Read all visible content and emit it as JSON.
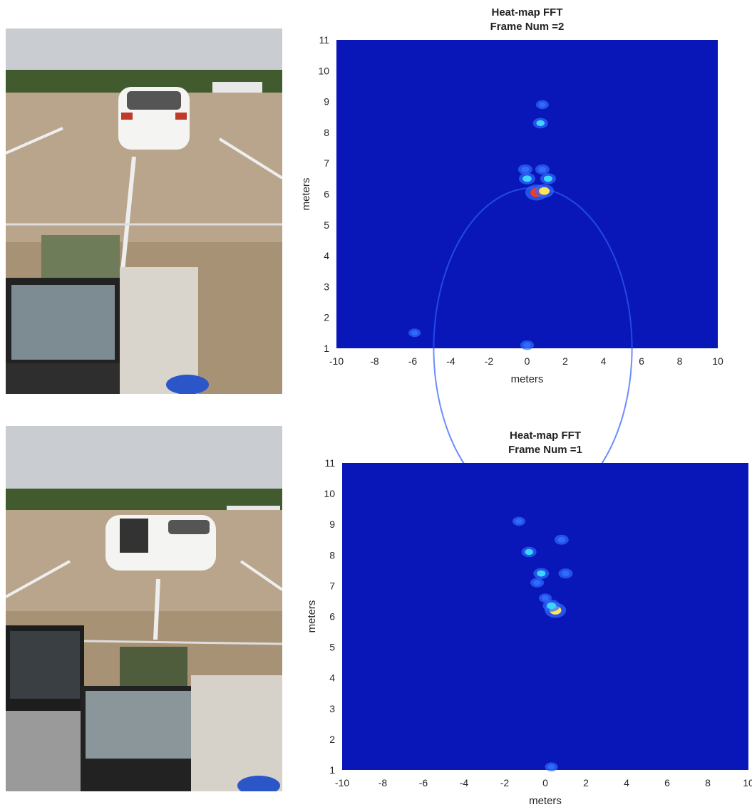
{
  "colors": {
    "heatmap_background": "#0a17b8",
    "heatmap_hot": "#ff3a10",
    "heatmap_warm": "#ffe45a",
    "heatmap_mid": "#3ad6ff",
    "sky": "#c9ccd0",
    "tree_line": "#3f5a2c",
    "asphalt": "#b8a389",
    "car": "#f4f4f2"
  },
  "photos": [
    {
      "name": "parking-lot-photo-car-closed",
      "description_icon": "photo-icon"
    },
    {
      "name": "parking-lot-photo-car-doors-open",
      "description_icon": "photo-icon"
    }
  ],
  "chart_data": [
    {
      "type": "heatmap",
      "title": "Heat-map FFT",
      "subtitle": "Frame Num =2",
      "xlabel": "meters",
      "ylabel": "meters",
      "xlim": [
        -10,
        10
      ],
      "ylim": [
        1,
        11
      ],
      "xticks": [
        -10,
        -8,
        -6,
        -4,
        -2,
        0,
        2,
        4,
        6,
        8,
        10
      ],
      "yticks": [
        1,
        2,
        3,
        4,
        5,
        6,
        7,
        8,
        9,
        10,
        11
      ],
      "hotspots": [
        {
          "x": 0.5,
          "y": 6.05,
          "intensity": 1.0
        },
        {
          "x": 0.9,
          "y": 6.1,
          "intensity": 0.75
        },
        {
          "x": 0.0,
          "y": 6.5,
          "intensity": 0.55
        },
        {
          "x": 1.1,
          "y": 6.5,
          "intensity": 0.5
        },
        {
          "x": -0.1,
          "y": 6.8,
          "intensity": 0.4
        },
        {
          "x": 0.8,
          "y": 6.8,
          "intensity": 0.4
        },
        {
          "x": 0.7,
          "y": 8.3,
          "intensity": 0.45
        },
        {
          "x": 0.8,
          "y": 8.9,
          "intensity": 0.3
        },
        {
          "x": 0.0,
          "y": 1.1,
          "intensity": 0.35
        },
        {
          "x": -5.9,
          "y": 1.5,
          "intensity": 0.25
        }
      ],
      "arc": {
        "center_x": 0.3,
        "center_y": 1.0,
        "radius": 5.2
      }
    },
    {
      "type": "heatmap",
      "title": "Heat-map FFT",
      "subtitle": "Frame Num =1",
      "xlabel": "meters",
      "ylabel": "meters",
      "xlim": [
        -10,
        10
      ],
      "ylim": [
        1,
        11
      ],
      "xticks": [
        -10,
        -8,
        -6,
        -4,
        -2,
        0,
        2,
        4,
        6,
        8,
        10
      ],
      "yticks": [
        1,
        2,
        3,
        4,
        5,
        6,
        7,
        8,
        9,
        10,
        11
      ],
      "hotspots": [
        {
          "x": 0.5,
          "y": 6.2,
          "intensity": 0.9
        },
        {
          "x": 0.3,
          "y": 6.35,
          "intensity": 0.6
        },
        {
          "x": -0.2,
          "y": 7.4,
          "intensity": 0.5
        },
        {
          "x": 1.0,
          "y": 7.4,
          "intensity": 0.4
        },
        {
          "x": -0.4,
          "y": 7.1,
          "intensity": 0.35
        },
        {
          "x": -0.8,
          "y": 8.1,
          "intensity": 0.45
        },
        {
          "x": 0.8,
          "y": 8.5,
          "intensity": 0.4
        },
        {
          "x": -1.3,
          "y": 9.1,
          "intensity": 0.3
        },
        {
          "x": 0.0,
          "y": 6.6,
          "intensity": 0.3
        },
        {
          "x": 0.3,
          "y": 1.1,
          "intensity": 0.3
        }
      ],
      "arc": null
    }
  ]
}
